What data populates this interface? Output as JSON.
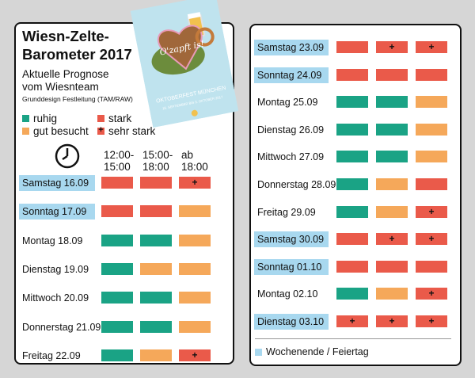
{
  "title_line1": "Wiesn-Zelte-",
  "title_line2": "Barometer 2017",
  "subtitle_line1": "Aktuelle Prognose",
  "subtitle_line2": "vom Wiesnteam",
  "credit": "Grunddesign Festleitung (TAM/RAW)",
  "legend": {
    "ruhig": "ruhig",
    "gut": "gut besucht",
    "stark": "stark",
    "sehr": "sehr stark"
  },
  "time_slots": [
    {
      "l1": "12:00-",
      "l2": "15:00"
    },
    {
      "l1": "15:00-",
      "l2": "18:00"
    },
    {
      "l1": "ab",
      "l2": "18:00"
    }
  ],
  "poster": {
    "heart_text": "O'zapft is!",
    "caption": "OKTOBERFEST MÜNCHEN",
    "dates": "16. SEPTEMBER BIS 3. OKTOBER 2017"
  },
  "colors": {
    "ruhig": "#1aa385",
    "gut": "#f5a85a",
    "stark": "#ea5a4a",
    "weekend": "#a8d8ef"
  },
  "left_days": [
    {
      "name": "Samstag 16.09",
      "weekend": true,
      "slots": [
        "stark",
        "stark",
        "sehr"
      ]
    },
    {
      "name": "Sonntag 17.09",
      "weekend": true,
      "slots": [
        "stark",
        "stark",
        "gut"
      ]
    },
    {
      "name": "Montag 18.09",
      "weekend": false,
      "slots": [
        "ruhig",
        "ruhig",
        "gut"
      ]
    },
    {
      "name": "Dienstag 19.09",
      "weekend": false,
      "slots": [
        "ruhig",
        "gut",
        "gut"
      ]
    },
    {
      "name": "Mittwoch 20.09",
      "weekend": false,
      "slots": [
        "ruhig",
        "ruhig",
        "gut"
      ]
    },
    {
      "name": "Donnerstag 21.09",
      "weekend": false,
      "slots": [
        "ruhig",
        "ruhig",
        "gut"
      ]
    },
    {
      "name": "Freitag 22.09",
      "weekend": false,
      "slots": [
        "ruhig",
        "gut",
        "sehr"
      ]
    }
  ],
  "right_days": [
    {
      "name": "Samstag 23.09",
      "weekend": true,
      "slots": [
        "stark",
        "sehr",
        "sehr"
      ]
    },
    {
      "name": "Sonntag 24.09",
      "weekend": true,
      "slots": [
        "stark",
        "stark",
        "stark"
      ]
    },
    {
      "name": "Montag 25.09",
      "weekend": false,
      "slots": [
        "ruhig",
        "ruhig",
        "gut"
      ]
    },
    {
      "name": "Dienstag 26.09",
      "weekend": false,
      "slots": [
        "ruhig",
        "ruhig",
        "gut"
      ]
    },
    {
      "name": "Mittwoch 27.09",
      "weekend": false,
      "slots": [
        "ruhig",
        "ruhig",
        "gut"
      ]
    },
    {
      "name": "Donnerstag 28.09",
      "weekend": false,
      "slots": [
        "ruhig",
        "gut",
        "stark"
      ]
    },
    {
      "name": "Freitag 29.09",
      "weekend": false,
      "slots": [
        "ruhig",
        "gut",
        "sehr"
      ]
    },
    {
      "name": "Samstag 30.09",
      "weekend": true,
      "slots": [
        "stark",
        "sehr",
        "sehr"
      ]
    },
    {
      "name": "Sonntag 01.10",
      "weekend": true,
      "slots": [
        "stark",
        "stark",
        "stark"
      ]
    },
    {
      "name": "Montag 02.10",
      "weekend": false,
      "slots": [
        "ruhig",
        "gut",
        "sehr"
      ]
    },
    {
      "name": "Dienstag 03.10",
      "weekend": true,
      "slots": [
        "sehr",
        "sehr",
        "sehr"
      ]
    }
  ],
  "footer_legend": "Wochenende / Feiertag"
}
